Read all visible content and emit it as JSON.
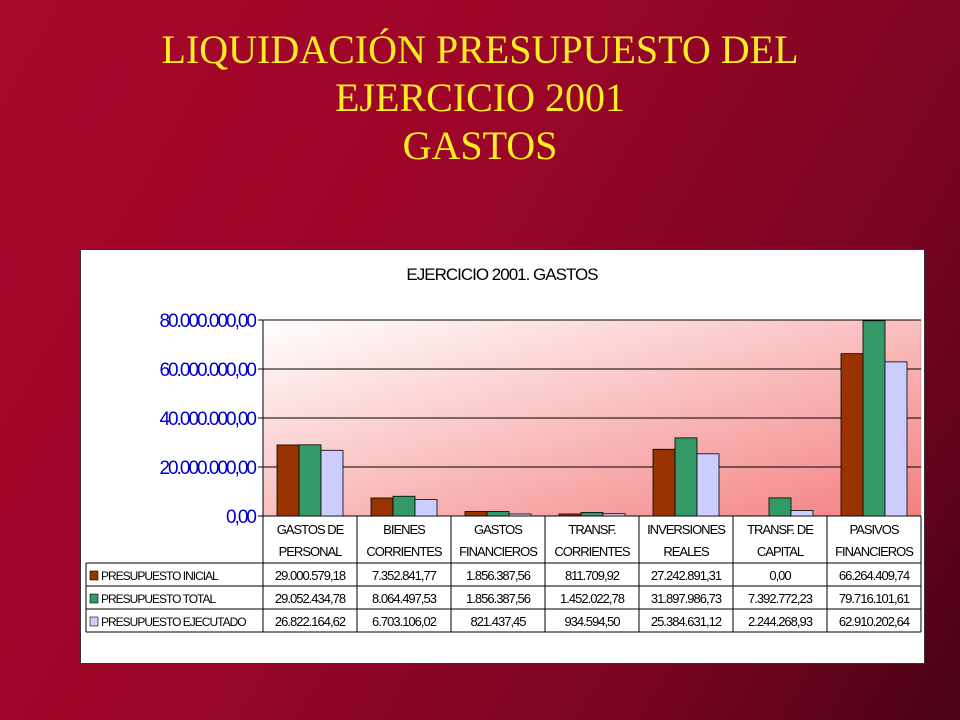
{
  "slide": {
    "title_line1": "LIQUIDACIÓN PRESUPUESTO DEL",
    "title_line2": "EJERCICIO 2001",
    "title_line3": "GASTOS"
  },
  "chart_data": {
    "type": "bar",
    "title": "EJERCICIO 2001. GASTOS",
    "ylim": [
      0,
      80000000
    ],
    "y_ticks": [
      "0,00",
      "20.000.000,00",
      "40.000.000,00",
      "60.000.000,00",
      "80.000.000,00"
    ],
    "categories": [
      [
        "GASTOS DE",
        "PERSONAL"
      ],
      [
        "BIENES",
        "CORRIENTES"
      ],
      [
        "GASTOS",
        "FINANCIEROS"
      ],
      [
        "TRANSF.",
        "CORRIENTES"
      ],
      [
        "INVERSIONES",
        "REALES"
      ],
      [
        "TRANSF. DE",
        "CAPITAL"
      ],
      [
        "PASIVOS",
        "FINANCIEROS"
      ]
    ],
    "series": [
      {
        "name": "PRESUPUESTO INICIAL",
        "color": "#993300",
        "values": [
          29000579.18,
          7352841.77,
          1856387.56,
          811709.92,
          27242891.31,
          0.0,
          66264409.74
        ],
        "labels": [
          "29.000.579,18",
          "7.352.841,77",
          "1.856.387,56",
          "811.709,92",
          "27.242.891,31",
          "0,00",
          "66.264.409,74"
        ]
      },
      {
        "name": "PRESUPUESTO TOTAL",
        "color": "#339966",
        "values": [
          29052434.78,
          8064497.53,
          1856387.56,
          1452022.78,
          31897986.73,
          7392772.23,
          79716101.61
        ],
        "labels": [
          "29.052.434,78",
          "8.064.497,53",
          "1.856.387,56",
          "1.452.022,78",
          "31.897.986,73",
          "7.392.772,23",
          "79.716.101,61"
        ]
      },
      {
        "name": "PRESUPUESTO EJECUTADO",
        "color": "#ccccff",
        "values": [
          26822164.62,
          6703106.02,
          821437.45,
          934594.5,
          25384631.12,
          2244268.93,
          62910202.64
        ],
        "labels": [
          "26.822.164,62",
          "6.703.106,02",
          "821.437,45",
          "934.594,50",
          "25.384.631,12",
          "2.244.268,93",
          "62.910.202,64"
        ]
      }
    ],
    "grid": true,
    "legend": "data-table"
  }
}
